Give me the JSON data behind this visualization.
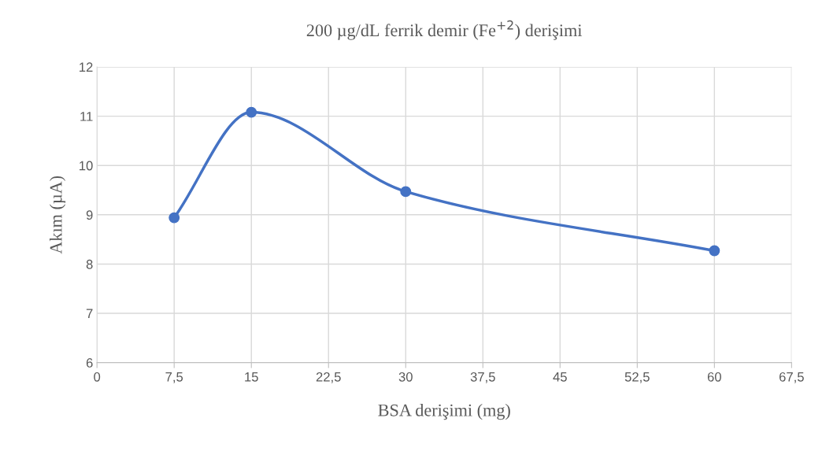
{
  "chart_data": {
    "type": "line",
    "title": "200 µg/dL ferrik demir (Fe$^{+2}$) derişimi",
    "xlabel": "BSA derişimi (mg)",
    "ylabel": "Akım (µA)",
    "x": [
      7.5,
      15,
      30,
      60
    ],
    "series": [
      {
        "color": "#4472c4",
        "values": [
          8.94,
          11.08,
          9.47,
          8.27
        ]
      }
    ],
    "xlim": [
      0,
      67.5
    ],
    "xticks": [
      0,
      {
        "value": 7.5,
        "label": "7,5"
      },
      15,
      {
        "value": 22.5,
        "label": "22,5"
      },
      30,
      {
        "value": 37.5,
        "label": "37,5"
      },
      45,
      {
        "value": 52.5,
        "label": "52,5"
      },
      60,
      {
        "value": 67.5,
        "label": "67,5"
      }
    ],
    "ylim": [
      6,
      12
    ],
    "yticks": [
      6,
      7,
      8,
      9,
      10,
      11,
      12
    ],
    "grid": true,
    "marker": "circle",
    "line_style": "solid",
    "legend": false
  }
}
